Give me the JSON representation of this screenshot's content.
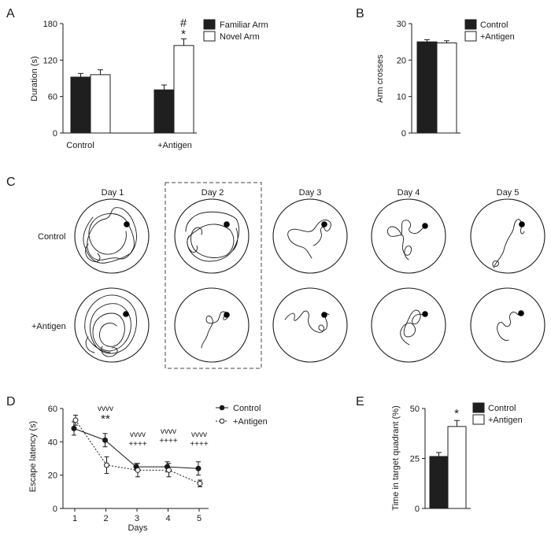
{
  "chart_data": [
    {
      "id": "A",
      "type": "bar",
      "panel_label": "A",
      "title": "",
      "ylabel": "Duration (s)",
      "xlabel": "",
      "ylim": [
        0,
        180
      ],
      "yticks": [
        0,
        60,
        120,
        180
      ],
      "categories": [
        "Control",
        "+Antigen"
      ],
      "series": [
        {
          "name": "Familiar Arm",
          "values": [
            92,
            71
          ],
          "errors": [
            6,
            8
          ],
          "color": "#1f1f1f"
        },
        {
          "name": "Novel Arm",
          "values": [
            96,
            144
          ],
          "errors": [
            8,
            11
          ],
          "color": "#ffffff"
        }
      ],
      "annotations": [
        {
          "category": "+Antigen",
          "series": "Novel Arm",
          "text": [
            "#",
            "*"
          ]
        }
      ],
      "legend_placement": "top-right",
      "grid": false
    },
    {
      "id": "B",
      "type": "bar",
      "panel_label": "B",
      "title": "",
      "ylabel": "Arm crosses",
      "xlabel": "",
      "ylim": [
        0,
        30
      ],
      "yticks": [
        0,
        10,
        20,
        30
      ],
      "categories": [
        ""
      ],
      "series": [
        {
          "name": "Control",
          "values": [
            25
          ],
          "errors": [
            0.6
          ],
          "color": "#1f1f1f"
        },
        {
          "name": "+Antigen",
          "values": [
            24.7
          ],
          "errors": [
            0.6
          ],
          "color": "#ffffff"
        }
      ],
      "legend_placement": "top-right",
      "grid": false
    },
    {
      "id": "C",
      "type": "table",
      "panel_label": "C",
      "columns": [
        "Day 1",
        "Day 2",
        "Day 3",
        "Day 4",
        "Day 5"
      ],
      "rows": [
        "Control",
        "+Antigen"
      ],
      "highlighted_column": "Day 2",
      "content": "swim-path traces in circular water-maze arenas with platform marker"
    },
    {
      "id": "D",
      "type": "line",
      "panel_label": "D",
      "title": "",
      "xlabel": "Days",
      "ylabel": "Escape latency (s)",
      "ylim": [
        0,
        60
      ],
      "yticks": [
        0,
        20,
        40,
        60
      ],
      "x": [
        1,
        2,
        3,
        4,
        5
      ],
      "series": [
        {
          "name": "Control",
          "values": [
            48,
            41,
            25,
            25,
            24
          ],
          "errors": [
            4,
            4,
            2,
            3,
            4
          ],
          "line_style": "solid",
          "marker": "filled-circle"
        },
        {
          "name": "+Antigen",
          "values": [
            53,
            26,
            23,
            23,
            15
          ],
          "errors": [
            3,
            5,
            4,
            4,
            2
          ],
          "line_style": "dotted",
          "marker": "open-circle"
        }
      ],
      "annotations": [
        {
          "x": 2,
          "lines": [
            "vvvv",
            "**"
          ]
        },
        {
          "x": 3,
          "lines": [
            "vvvv",
            "++++"
          ]
        },
        {
          "x": 4,
          "lines": [
            "vvvv",
            "++++"
          ]
        },
        {
          "x": 5,
          "lines": [
            "vvvv",
            "++++"
          ]
        }
      ],
      "legend_placement": "top-right",
      "grid": false
    },
    {
      "id": "E",
      "type": "bar",
      "panel_label": "E",
      "title": "",
      "ylabel": "Time in target quadrant (%)",
      "xlabel": "",
      "ylim": [
        0,
        50
      ],
      "yticks": [
        0,
        25,
        50
      ],
      "categories": [
        ""
      ],
      "series": [
        {
          "name": "Control",
          "values": [
            26
          ],
          "errors": [
            2
          ],
          "color": "#1f1f1f"
        },
        {
          "name": "+Antigen",
          "values": [
            41
          ],
          "errors": [
            3
          ],
          "color": "#ffffff"
        }
      ],
      "annotations": [
        {
          "series": "+Antigen",
          "text": "*"
        }
      ],
      "legend_placement": "top-right",
      "grid": false
    }
  ]
}
